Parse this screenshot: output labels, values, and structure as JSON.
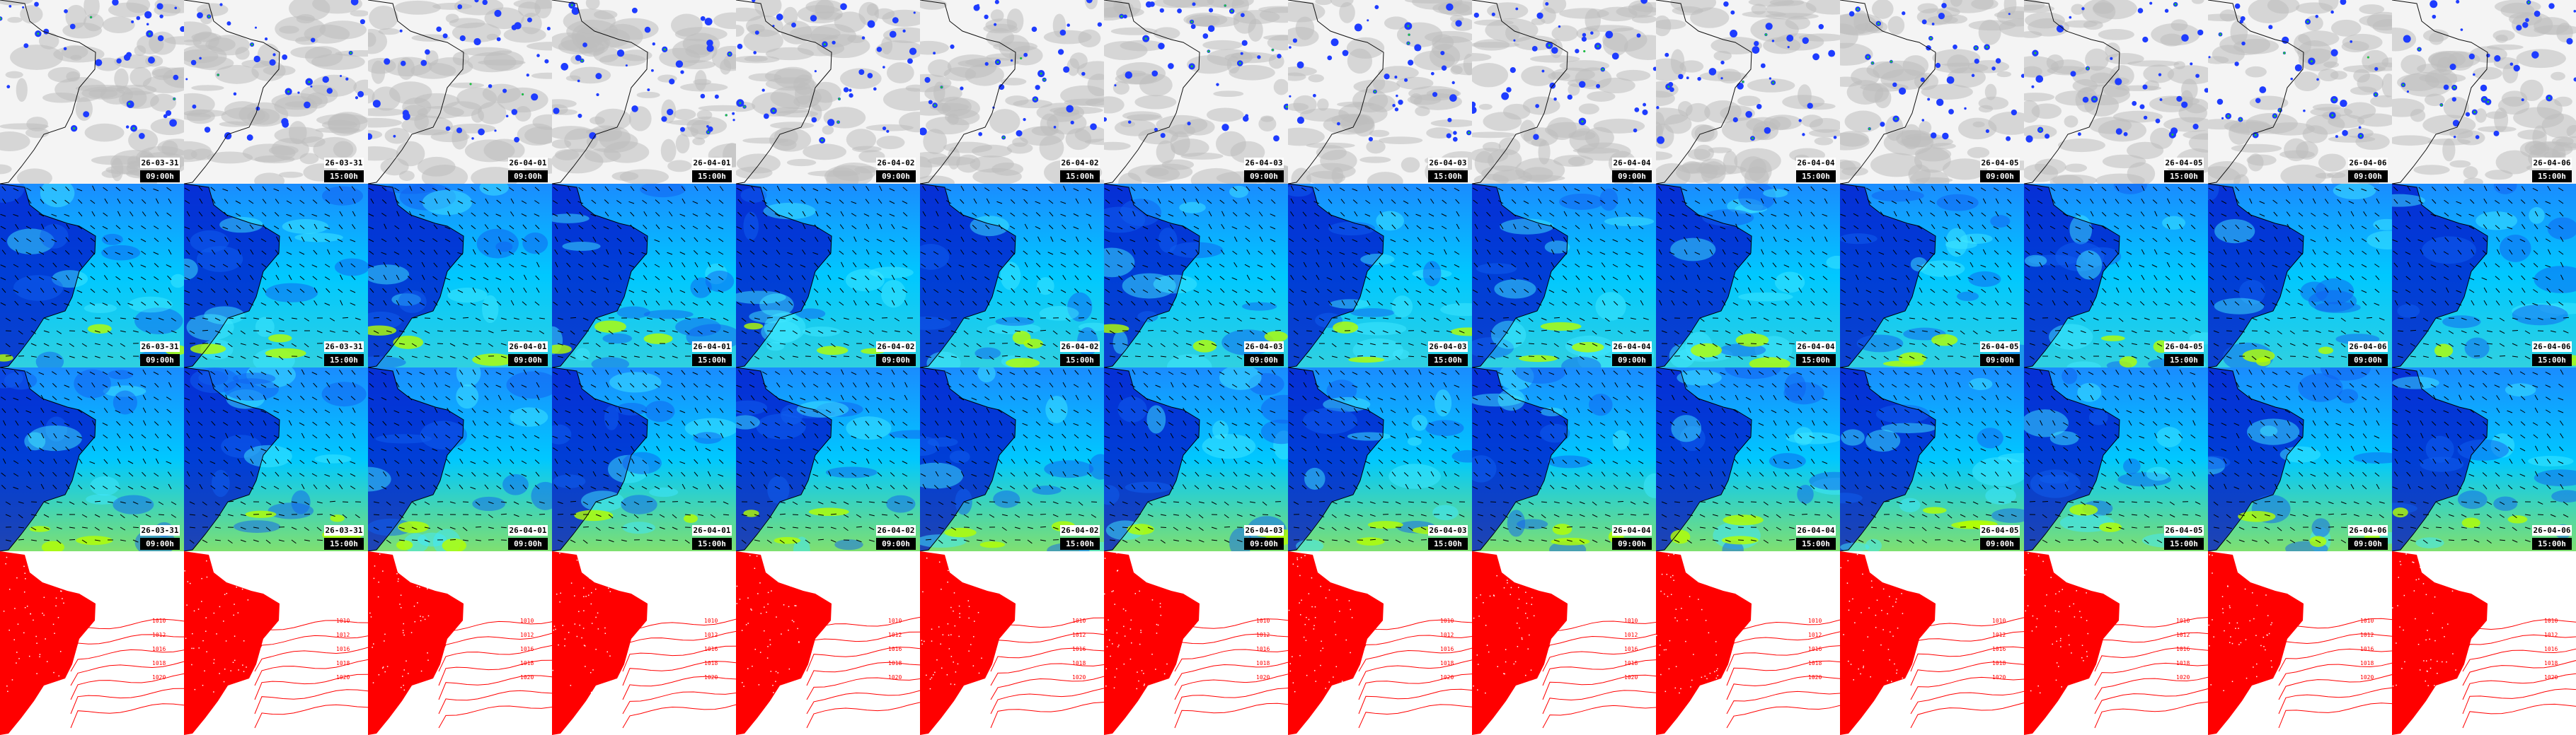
{
  "frames": [
    {
      "date": "26-03-31",
      "time": "09:00h"
    },
    {
      "date": "26-03-31",
      "time": "15:00h"
    },
    {
      "date": "26-04-01",
      "time": "09:00h"
    },
    {
      "date": "26-04-01",
      "time": "15:00h"
    },
    {
      "date": "26-04-02",
      "time": "09:00h"
    },
    {
      "date": "26-04-02",
      "time": "15:00h"
    },
    {
      "date": "26-04-03",
      "time": "09:00h"
    },
    {
      "date": "26-04-03",
      "time": "15:00h"
    },
    {
      "date": "26-04-04",
      "time": "09:00h"
    },
    {
      "date": "26-04-04",
      "time": "15:00h"
    },
    {
      "date": "26-04-05",
      "time": "09:00h"
    },
    {
      "date": "26-04-05",
      "time": "15:00h"
    },
    {
      "date": "26-04-06",
      "time": "09:00h"
    },
    {
      "date": "26-04-06",
      "time": "15:00h"
    }
  ],
  "rows": [
    {
      "kind": "satellite-precipitation",
      "stamped": true
    },
    {
      "kind": "wind-level-1",
      "stamped": true
    },
    {
      "kind": "wind-level-2",
      "stamped": true
    },
    {
      "kind": "sea-level-pressure",
      "stamped": false
    }
  ],
  "isobar_labels": [
    "1010",
    "1012",
    "1016",
    "1018",
    "1020"
  ],
  "colors": {
    "cloud": "#bdbdbd",
    "rain_light": "#1e3cff",
    "rain_heavy": "#22c832",
    "wind_low": "#0010c8",
    "wind_mid": "#00c8ff",
    "wind_high": "#b4ff00",
    "isobar": "#ff0000"
  }
}
